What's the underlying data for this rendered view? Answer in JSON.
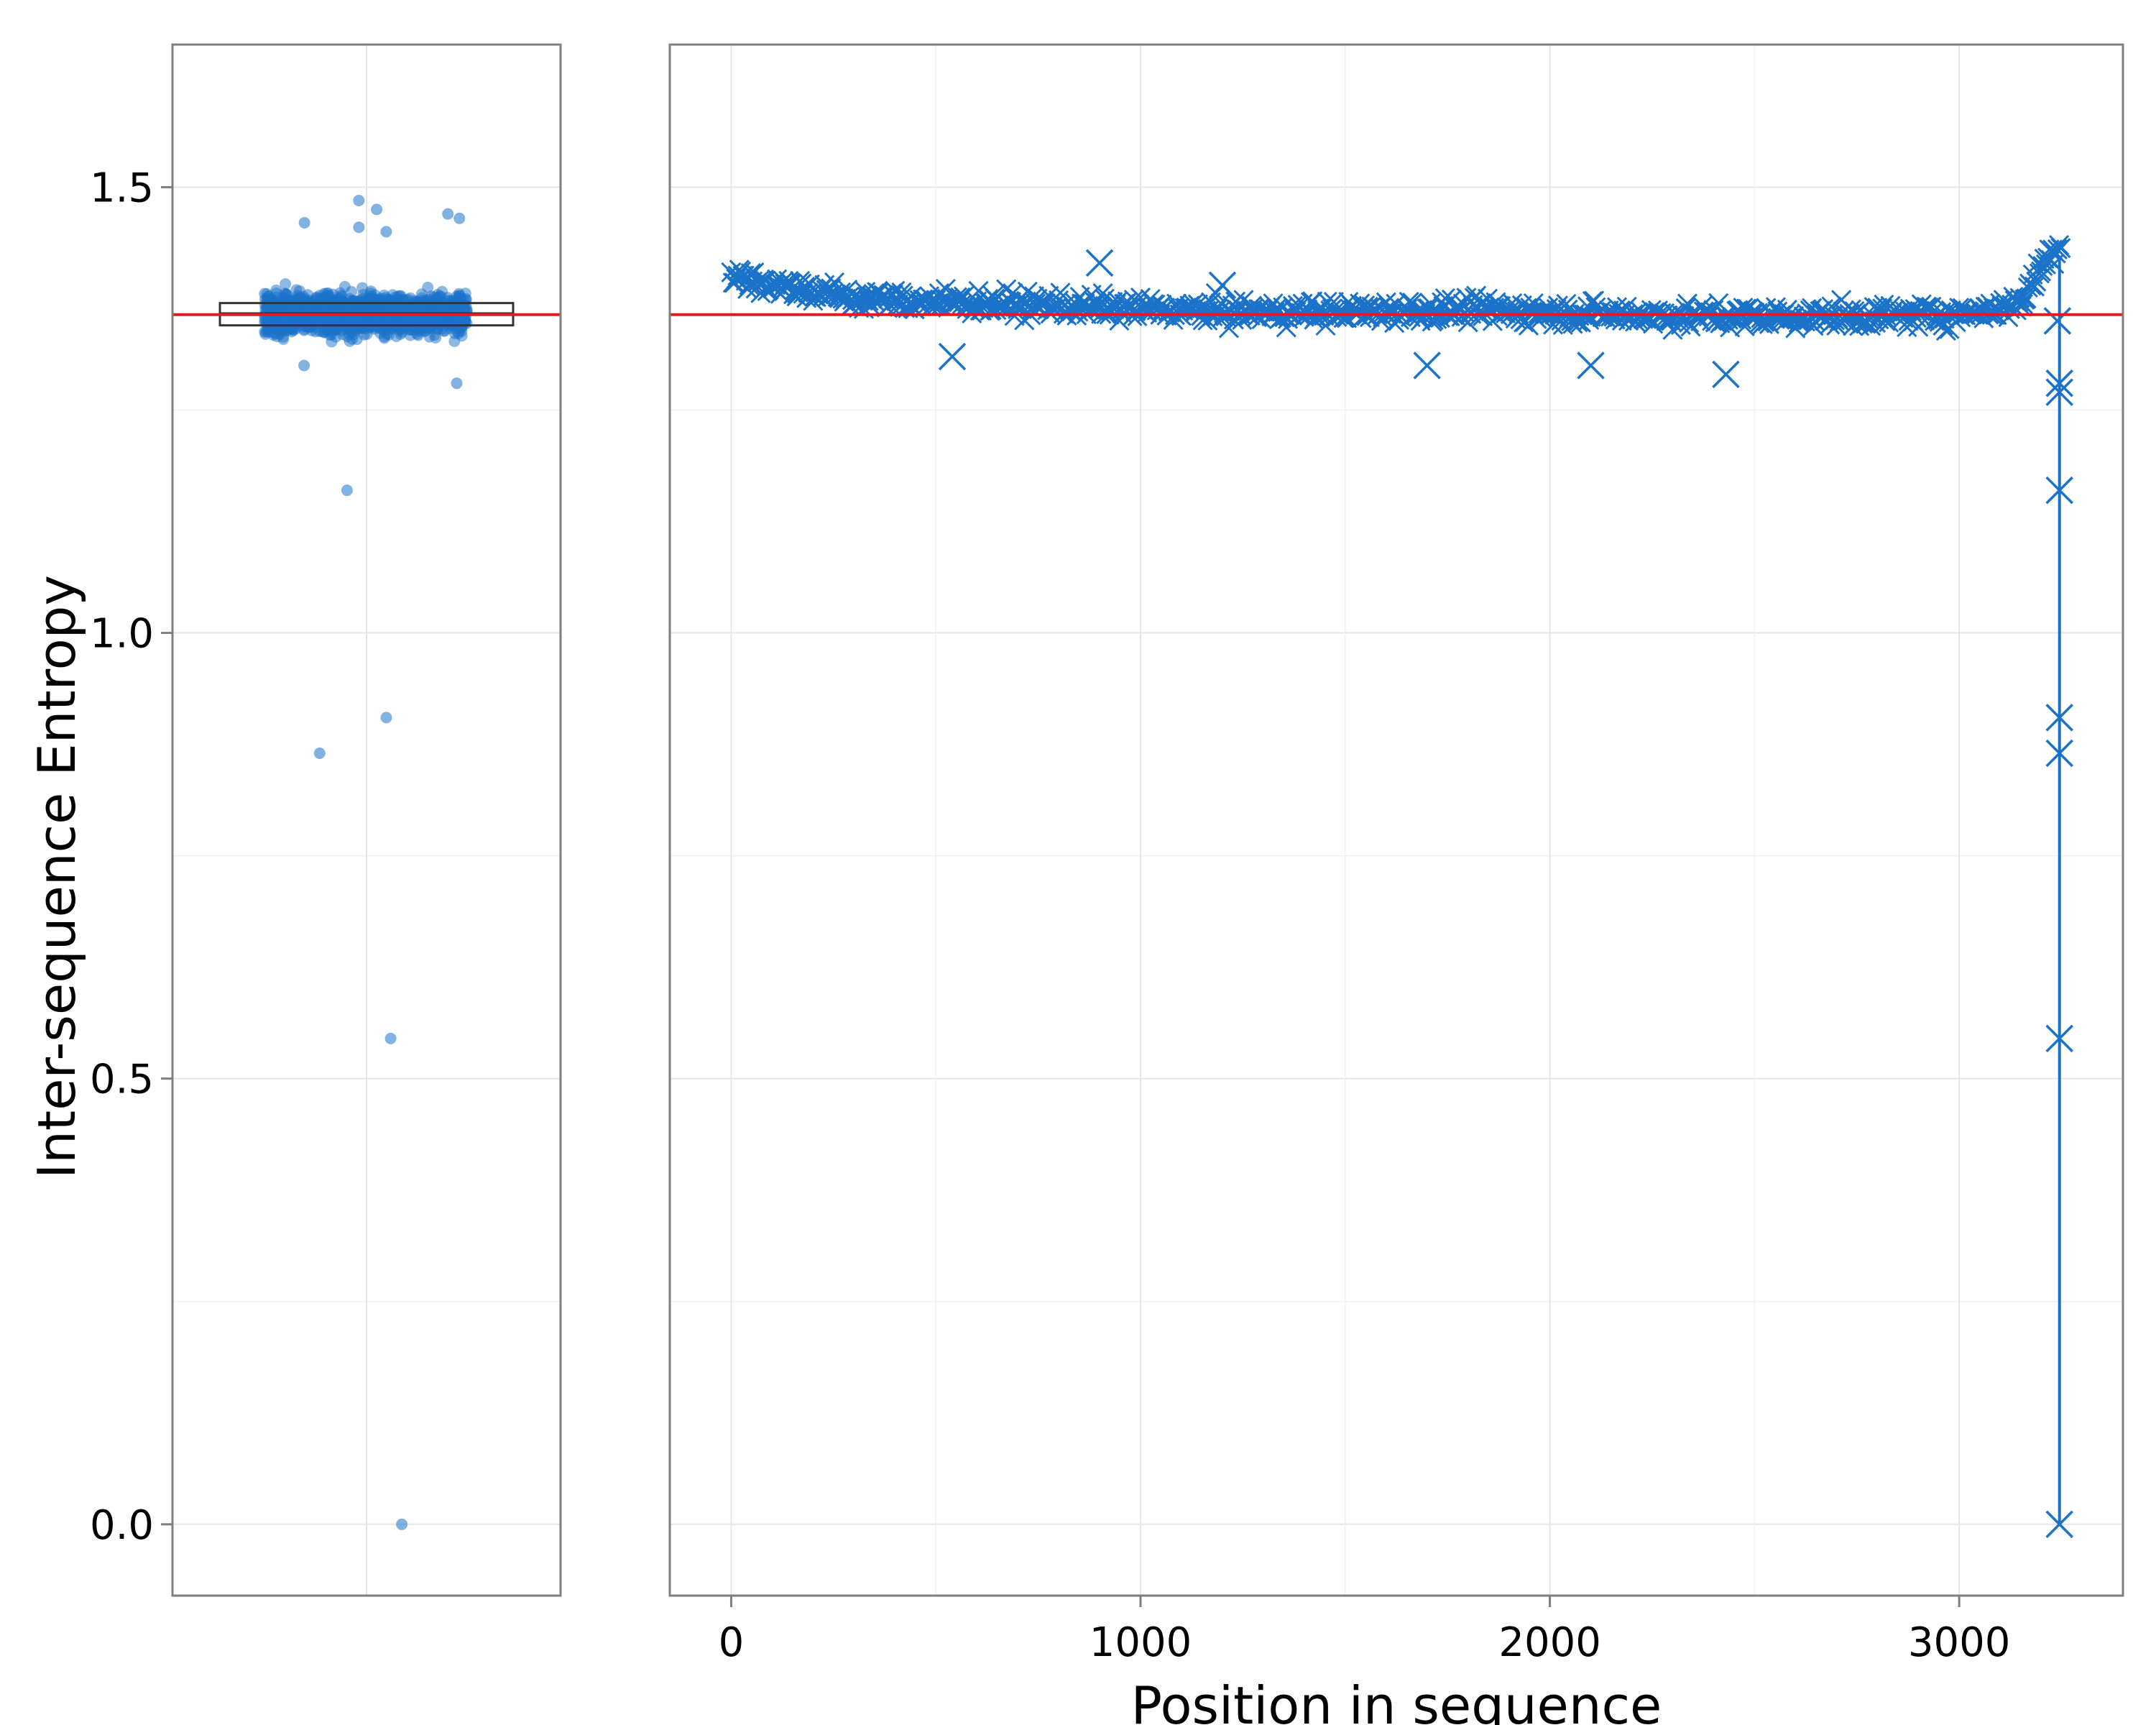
{
  "chart_data": [
    {
      "type": "scatter",
      "variant": "jittered strip with boxplot",
      "title": "",
      "xlabel": "",
      "ylabel": "Inter-sequence Entropy",
      "ylim": [
        -0.08,
        1.66
      ],
      "yticks": [
        0.0,
        0.5,
        1.0,
        1.5
      ],
      "ytick_labels": [
        "0.0",
        "0.5",
        "1.0",
        "1.5"
      ],
      "grid": true,
      "boxplot": {
        "q1": 1.345,
        "median": 1.358,
        "q3": 1.37,
        "whisker_low": 1.32,
        "whisker_high": 1.41
      },
      "reference_line": {
        "y": 1.357,
        "color": "#e41a1c"
      },
      "outliers": [
        1.485,
        1.475,
        1.47,
        1.465,
        1.46,
        1.455,
        1.45,
        1.3,
        1.28,
        1.16,
        0.905,
        0.865,
        0.545,
        0.0
      ],
      "point_color": "#1a72c9"
    },
    {
      "type": "scatter",
      "marker": "x",
      "title": "",
      "xlabel": "Position in sequence",
      "ylabel": "",
      "xlim": [
        -150,
        3400
      ],
      "ylim": [
        -0.08,
        1.66
      ],
      "xticks": [
        0,
        1000,
        2000,
        3000
      ],
      "xtick_labels": [
        "0",
        "1000",
        "2000",
        "3000"
      ],
      "grid": true,
      "reference_line": {
        "y": 1.357,
        "color": "#e41a1c"
      },
      "point_color": "#1a72c9",
      "trend": {
        "x": [
          0,
          300,
          600,
          900,
          1200,
          1500,
          1800,
          2100,
          2400,
          2700,
          3000,
          3150,
          3200,
          3250
        ],
        "y": [
          1.4,
          1.375,
          1.37,
          1.365,
          1.36,
          1.36,
          1.362,
          1.358,
          1.355,
          1.355,
          1.357,
          1.37,
          1.41,
          1.44
        ]
      },
      "band_halfwidth": 0.02,
      "outlier_points": [
        {
          "x": 540,
          "y": 1.31
        },
        {
          "x": 900,
          "y": 1.415
        },
        {
          "x": 1700,
          "y": 1.3
        },
        {
          "x": 2100,
          "y": 1.3
        },
        {
          "x": 2430,
          "y": 1.29
        },
        {
          "x": 1200,
          "y": 1.39
        },
        {
          "x": 3240,
          "y": 1.35
        },
        {
          "x": 3245,
          "y": 1.28
        },
        {
          "x": 3245,
          "y": 1.27
        },
        {
          "x": 3245,
          "y": 1.16
        },
        {
          "x": 3245,
          "y": 0.905
        },
        {
          "x": 3245,
          "y": 0.865
        },
        {
          "x": 3245,
          "y": 0.545
        },
        {
          "x": 3245,
          "y": 0.0
        }
      ],
      "end_segment": {
        "x": 3245,
        "y_from": 1.42,
        "y_to": 0.0
      }
    }
  ]
}
